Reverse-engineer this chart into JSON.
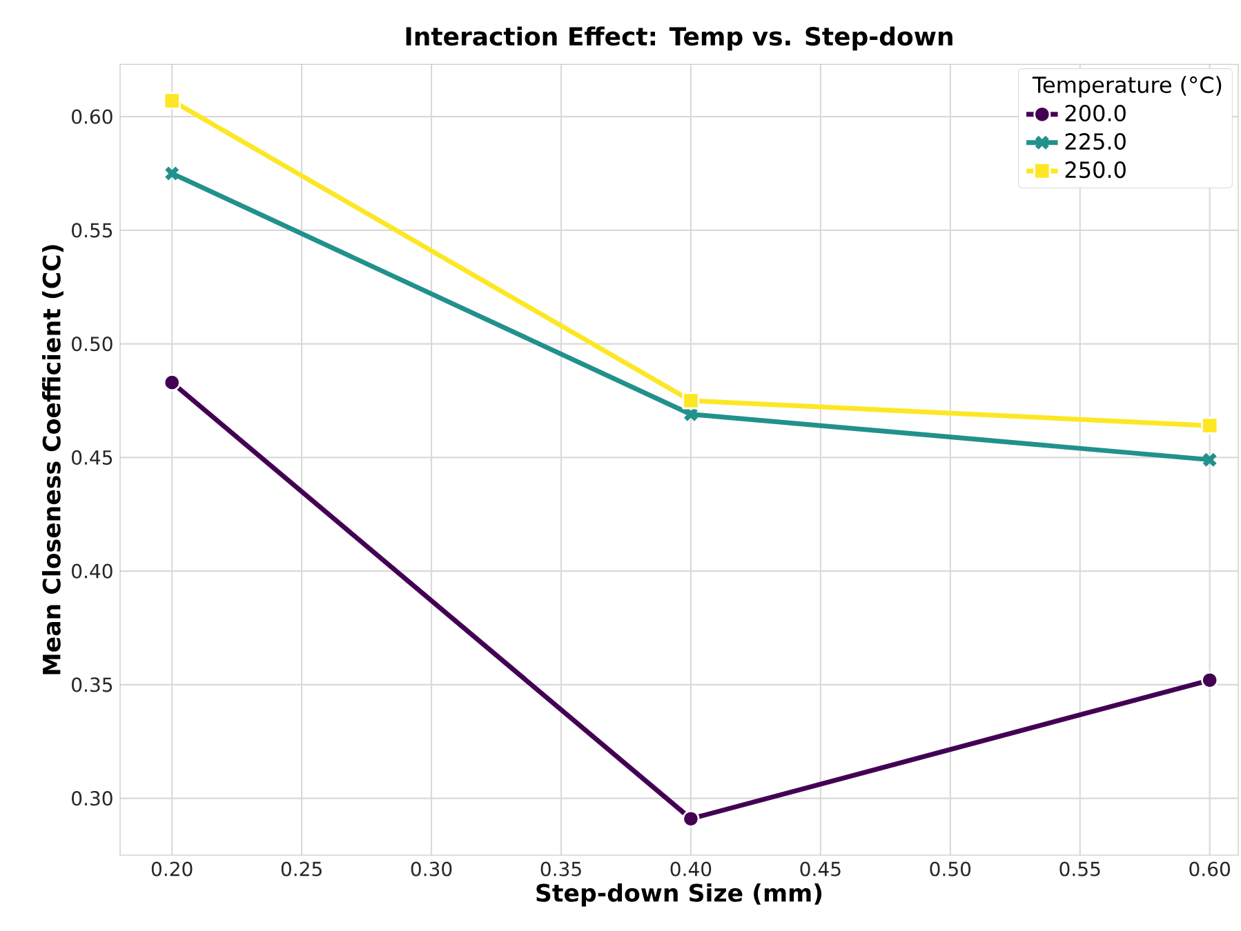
{
  "chart_data": {
    "type": "line",
    "title": "Interaction Effect: Temp vs. Step-down",
    "xlabel": "Step-down Size (mm)",
    "ylabel": "Mean Closeness Coefficient (CC)",
    "legend_title": "Temperature (°C)",
    "x": [
      0.2,
      0.4,
      0.6
    ],
    "series": [
      {
        "name": "200.0",
        "color": "#440154",
        "marker": "circle",
        "values": [
          0.483,
          0.291,
          0.352
        ]
      },
      {
        "name": "225.0",
        "color": "#21918c",
        "marker": "cross",
        "values": [
          0.575,
          0.469,
          0.449
        ]
      },
      {
        "name": "250.0",
        "color": "#fde725",
        "marker": "square",
        "values": [
          0.607,
          0.475,
          0.464
        ]
      }
    ],
    "xlim": [
      0.18,
      0.611
    ],
    "ylim": [
      0.275,
      0.623
    ],
    "xticks": [
      {
        "value": 0.2,
        "label": "0.20"
      },
      {
        "value": 0.25,
        "label": "0.25"
      },
      {
        "value": 0.3,
        "label": "0.30"
      },
      {
        "value": 0.35,
        "label": "0.35"
      },
      {
        "value": 0.4,
        "label": "0.40"
      },
      {
        "value": 0.45,
        "label": "0.45"
      },
      {
        "value": 0.5,
        "label": "0.50"
      },
      {
        "value": 0.55,
        "label": "0.55"
      },
      {
        "value": 0.6,
        "label": "0.60"
      }
    ],
    "yticks": [
      {
        "value": 0.3,
        "label": "0.30"
      },
      {
        "value": 0.35,
        "label": "0.35"
      },
      {
        "value": 0.4,
        "label": "0.40"
      },
      {
        "value": 0.45,
        "label": "0.45"
      },
      {
        "value": 0.5,
        "label": "0.50"
      },
      {
        "value": 0.55,
        "label": "0.55"
      },
      {
        "value": 0.6,
        "label": "0.60"
      }
    ],
    "grid": true,
    "legend": "top right",
    "line_style": "solid"
  }
}
